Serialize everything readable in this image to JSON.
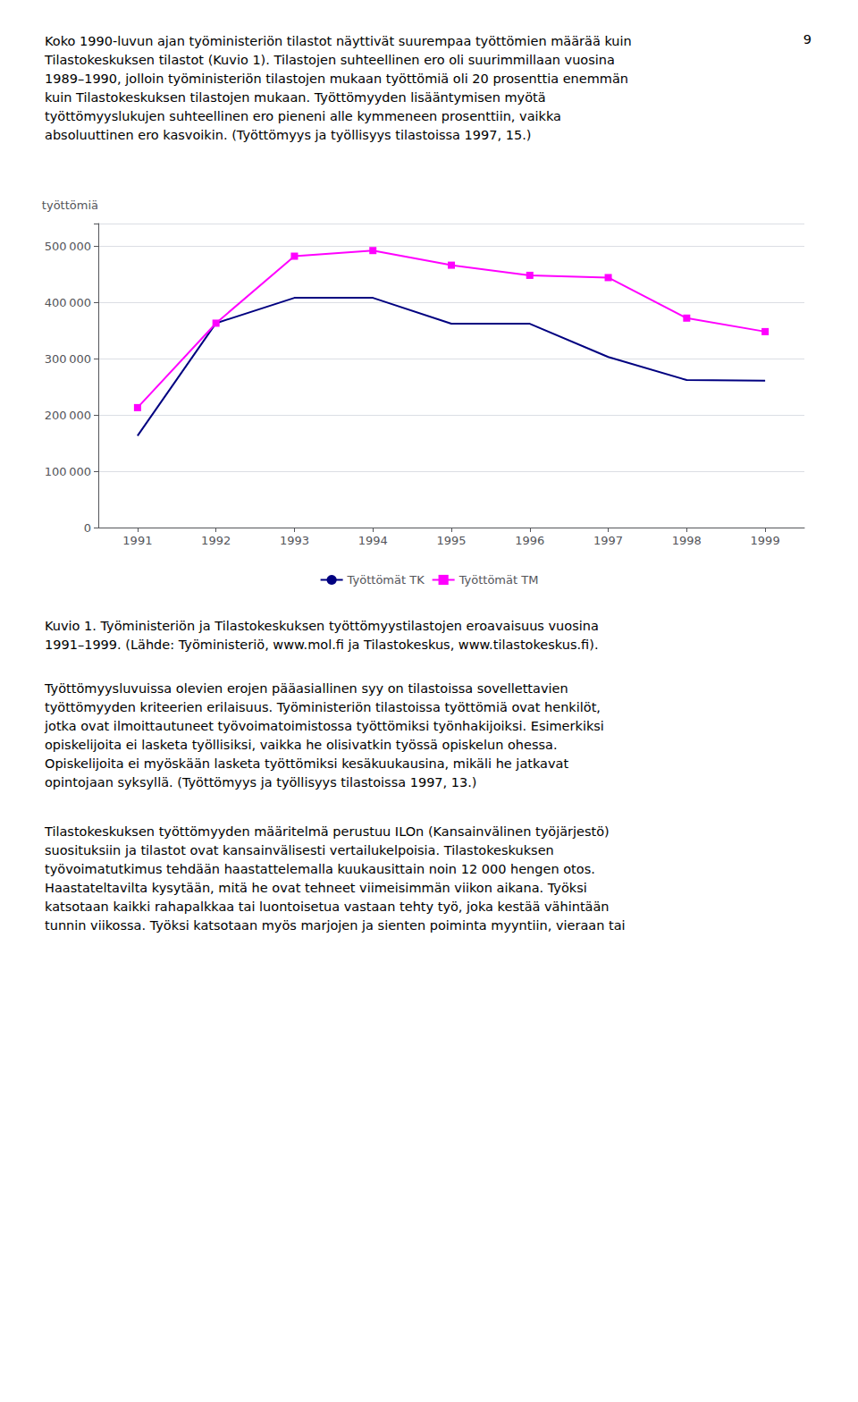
{
  "chart_data": {
    "type": "line",
    "ylabel": "työttömiä",
    "x": [
      1991,
      1992,
      1993,
      1994,
      1995,
      1996,
      1997,
      1998,
      1999
    ],
    "series": [
      {
        "name": "Työttömät TK",
        "color": "#000080",
        "marker": "none",
        "values": [
          163000,
          363000,
          408000,
          408000,
          362000,
          362000,
          303000,
          262000,
          261000
        ]
      },
      {
        "name": "Työttömät TM",
        "color": "#FF00FF",
        "marker": "square",
        "values": [
          213000,
          363000,
          482000,
          492000,
          466000,
          448000,
          444000,
          372000,
          348000
        ]
      }
    ],
    "xlim": [
      1990.5,
      1999.5
    ],
    "xticks": [
      1991,
      1992,
      1993,
      1994,
      1995,
      1996,
      1997,
      1998,
      1999
    ],
    "ylim": [
      0,
      540000
    ],
    "yticks": [
      0,
      {
        "value": 100000,
        "label": "100 000"
      },
      {
        "value": 200000,
        "label": "200 000"
      },
      {
        "value": 300000,
        "label": "300 000"
      },
      {
        "value": 400000,
        "label": "400 000"
      },
      {
        "value": 500000,
        "label": "500 000"
      }
    ],
    "grid": true,
    "legend": "bottom"
  },
  "page_number": "9",
  "text_above": "Koko 1990-luvun ajan työministeriön tilastot näyttivät suurempaa työttömien määrää kuin\nTilastokeskuksen tilastot (Kuvio 1). Tilastojen suhteellinen ero oli suurimmillaan vuosina\n1989–1990, jolloin työministeriön tilastojen mukaan työttömiä oli 20 prosenttia enemmän\nkuin Tilastokeskuksen tilastojen mukaan. Työttömyyden lisääntymisen myötä\ntyöttömyyslukujen suhteellinen ero pieneni alle kymmeneen prosenttiin, vaikka\nabsoluuttinen ero kasvoikin. (Työttömyys ja työllisyys tilastoissa 1997, 15.)",
  "caption": "Kuvio 1. Työministeriön ja Tilastokeskuksen työttömyystilastojen eroavaisuus vuosina\n1991–1999. (Lähde: Työministeriö, www.mol.fi ja Tilastokeskus, www.tilastokeskus.fi).",
  "body_text": [
    "Työttömyysluvuissa olevien erojen pääasiallinen syy on tilastoissa sovellettavien\ntyöttömyyden kriteerien erilaisuus. Työministeriön tilastoissa työttömiä ovat henkilöt,\njotka ovat ilmoittautuneet työvoimatoimistossa työttömiksi työnhakijoiksi. Esimerkiksi\nopiskelijoita ei lasketa työllisiksi, vaikka he olisivatkin työssä opiskelun ohessa.\nOpiskelijoita ei myöskään lasketa työttömiksi kesäkuukausina, mikäli he jatkavat\nopintojaan syksyllä. (Työttömyys ja työllisyys tilastoissa 1997, 13.)",
    "Tilastokeskuksen työttömyyden määritelmä perustuu ILOn (Kansainvälinen työjärjestö)\nsuosituksiin ja tilastot ovat kansainvälisesti vertailukelpoisia. Tilastokeskuksen\ntyövoimatutkimus tehdään haastattelemalla kuukausittain noin 12 000 hengen otos.\nHaastateltavilta kysytään, mitä he ovat tehneet viimeisimmän viikon aikana. Työksi\nkatsotaan kaikki rahapalkkaa tai luontoisetua vastaan tehty työ, joka kestää vähintään\ntunnin viikossa. Työksi katsotaan myös marjojen ja sienten poiminta myyntiin, vieraan tai"
  ]
}
